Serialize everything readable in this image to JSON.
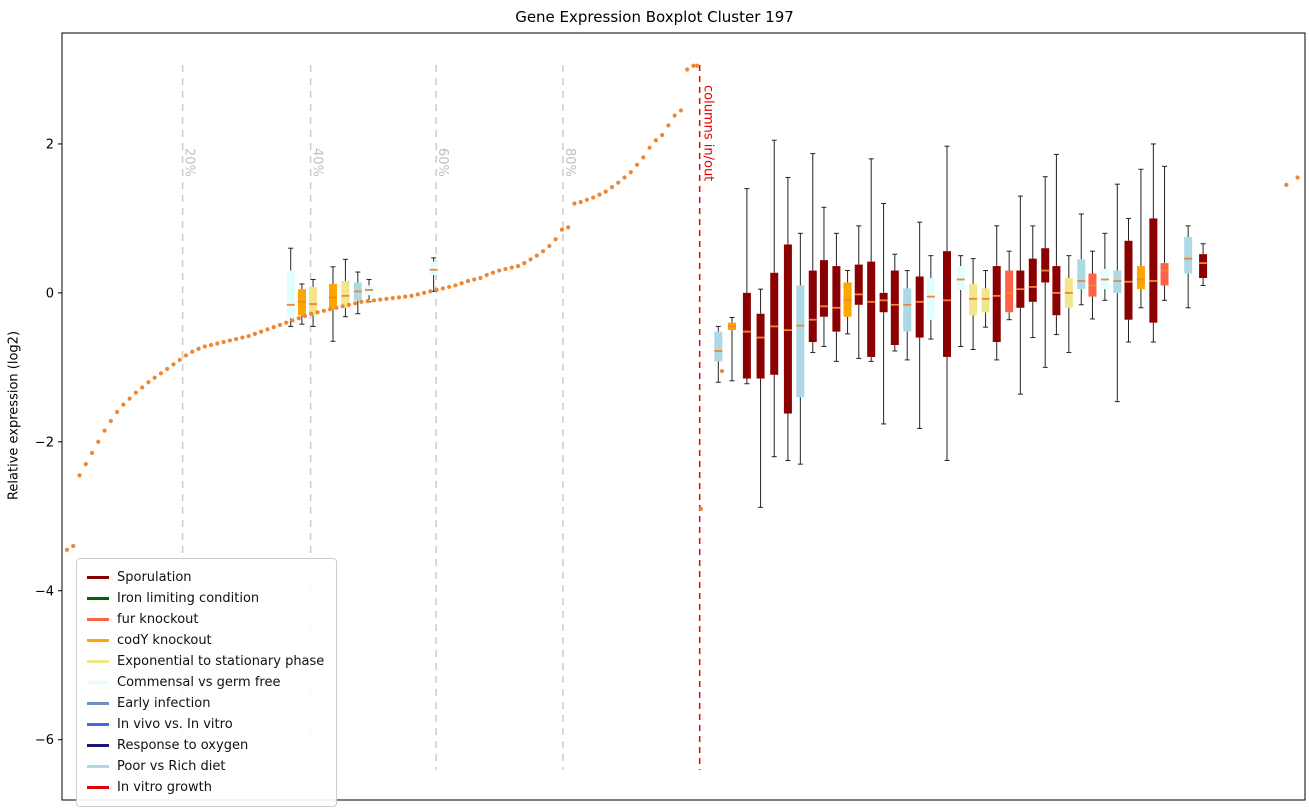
{
  "chart": {
    "title": "Gene Expression Boxplot Cluster 197",
    "ylabel": "Relative expression (log2)"
  },
  "chart_data": {
    "type": "boxplot",
    "title": "Gene Expression Boxplot Cluster 197",
    "xlabel": "",
    "ylabel": "Relative expression (log2)",
    "ylim": [
      -6.81,
      3.49
    ],
    "yticks": [
      {
        "v": 2,
        "label": "2"
      },
      {
        "v": 0,
        "label": "0"
      },
      {
        "v": -2,
        "label": "−2"
      },
      {
        "v": -4,
        "label": "−4"
      },
      {
        "v": -6,
        "label": "−6"
      }
    ],
    "trend": {
      "color": "#ED8733",
      "x_start_frac": 0.004,
      "x_end_frac": 0.508,
      "values": [
        -3.45,
        -3.4,
        -2.45,
        -2.3,
        -2.15,
        -2.0,
        -1.85,
        -1.72,
        -1.6,
        -1.5,
        -1.42,
        -1.34,
        -1.27,
        -1.2,
        -1.14,
        -1.08,
        -1.02,
        -0.96,
        -0.9,
        -0.84,
        -0.79,
        -0.75,
        -0.72,
        -0.7,
        -0.68,
        -0.66,
        -0.64,
        -0.62,
        -0.6,
        -0.58,
        -0.55,
        -0.52,
        -0.49,
        -0.46,
        -0.43,
        -0.4,
        -0.37,
        -0.34,
        -0.31,
        -0.28,
        -0.26,
        -0.24,
        -0.22,
        -0.2,
        -0.18,
        -0.16,
        -0.14,
        -0.12,
        -0.11,
        -0.1,
        -0.09,
        -0.08,
        -0.07,
        -0.06,
        -0.05,
        -0.04,
        -0.02,
        0.0,
        0.02,
        0.04,
        0.06,
        0.08,
        0.1,
        0.13,
        0.16,
        0.18,
        0.2,
        0.24,
        0.27,
        0.3,
        0.32,
        0.34,
        0.36,
        0.4,
        0.45,
        0.5,
        0.56,
        0.63,
        0.72,
        0.85,
        0.88,
        1.2,
        1.22,
        1.25,
        1.28,
        1.32,
        1.36,
        1.42,
        1.48,
        1.55,
        1.62,
        1.72,
        1.82,
        1.95,
        2.05,
        2.12,
        2.25,
        2.38,
        2.45,
        3.0,
        3.05
      ]
    },
    "extra_dots": [
      {
        "f": 0.511,
        "v": 3.05
      },
      {
        "f": 0.514,
        "v": -2.9
      },
      {
        "f": 0.531,
        "v": -1.05
      },
      {
        "f": 0.985,
        "v": 1.45
      },
      {
        "f": 0.994,
        "v": 1.55
      }
    ],
    "percentile_lines": [
      {
        "frac": 0.097,
        "label": "20%"
      },
      {
        "frac": 0.2,
        "label": "40%"
      },
      {
        "frac": 0.301,
        "label": "60%"
      },
      {
        "frac": 0.403,
        "label": "80%"
      }
    ],
    "percentile_line_color": "#cccccc",
    "percentile_label_color": "#c0c0c0",
    "separator": {
      "frac": 0.513,
      "label": "columns in/out",
      "color": "#EE0000"
    },
    "legend": [
      {
        "key": "sporulation",
        "label": "Sporulation",
        "color": "#8B0000"
      },
      {
        "key": "iron",
        "label": "Iron limiting condition",
        "color": "#006400"
      },
      {
        "key": "fur",
        "label": "fur knockout",
        "color": "#FF6347"
      },
      {
        "key": "cody",
        "label": "codY knockout",
        "color": "#FFA500"
      },
      {
        "key": "exp_stat",
        "label": "Exponential to stationary phase",
        "color": "#F0E68C"
      },
      {
        "key": "commensal",
        "label": "Commensal vs germ free",
        "color": "#E0FFFF"
      },
      {
        "key": "early",
        "label": "Early infection",
        "color": "#6F8FBF"
      },
      {
        "key": "invivo",
        "label": "In vivo vs. In vitro",
        "color": "#4169E1"
      },
      {
        "key": "oxygen",
        "label": "Response to oxygen",
        "color": "#191970"
      },
      {
        "key": "poor_rich",
        "label": "Poor vs Rich diet",
        "color": "#ADD8E6"
      },
      {
        "key": "invitro",
        "label": "In vitro growth",
        "color": "#E8000B"
      }
    ],
    "boxplots": [
      {
        "f": 0.184,
        "c": "commensal",
        "lo": -0.45,
        "q1": -0.34,
        "med": -0.16,
        "q3": 0.3,
        "hi": 0.6
      },
      {
        "f": 0.193,
        "c": "cody",
        "lo": -0.42,
        "q1": -0.3,
        "med": -0.12,
        "q3": 0.05,
        "hi": 0.12
      },
      {
        "f": 0.202,
        "c": "exp_stat",
        "lo": -0.45,
        "q1": -0.3,
        "med": -0.15,
        "q3": 0.08,
        "hi": 0.18
      },
      {
        "f": 0.218,
        "c": "cody",
        "lo": -0.65,
        "q1": -0.22,
        "med": -0.06,
        "q3": 0.12,
        "hi": 0.35
      },
      {
        "f": 0.228,
        "c": "exp_stat",
        "lo": -0.32,
        "q1": -0.2,
        "med": -0.04,
        "q3": 0.16,
        "hi": 0.45
      },
      {
        "f": 0.238,
        "c": "poor_rich",
        "lo": -0.28,
        "q1": -0.1,
        "med": 0.02,
        "q3": 0.14,
        "hi": 0.28
      },
      {
        "f": 0.247,
        "c": "commensal",
        "lo": -0.12,
        "q1": -0.03,
        "med": 0.04,
        "q3": 0.1,
        "hi": 0.18
      },
      {
        "f": 0.299,
        "c": "commensal",
        "lo": 0.02,
        "q1": 0.24,
        "med": 0.31,
        "q3": 0.42,
        "hi": 0.47
      },
      {
        "f": 0.528,
        "c": "poor_rich",
        "lo": -1.2,
        "q1": -0.92,
        "med": -0.78,
        "q3": -0.52,
        "hi": -0.45
      },
      {
        "f": 0.539,
        "c": "cody",
        "lo": -1.18,
        "q1": -0.5,
        "med": -0.45,
        "q3": -0.4,
        "hi": -0.33
      },
      {
        "f": 0.551,
        "c": "sporulation",
        "lo": -1.22,
        "q1": -1.15,
        "med": -0.52,
        "q3": 0.0,
        "hi": 1.4
      },
      {
        "f": 0.562,
        "c": "sporulation",
        "lo": -2.88,
        "q1": -1.15,
        "med": -0.6,
        "q3": -0.28,
        "hi": 0.05
      },
      {
        "f": 0.573,
        "c": "sporulation",
        "lo": -2.2,
        "q1": -1.1,
        "med": -0.45,
        "q3": 0.27,
        "hi": 2.05
      },
      {
        "f": 0.584,
        "c": "sporulation",
        "lo": -2.25,
        "q1": -1.62,
        "med": -0.5,
        "q3": 0.65,
        "hi": 1.55
      },
      {
        "f": 0.594,
        "c": "poor_rich",
        "lo": -2.3,
        "q1": -1.4,
        "med": -0.44,
        "q3": 0.1,
        "hi": 0.8
      },
      {
        "f": 0.604,
        "c": "sporulation",
        "lo": -0.8,
        "q1": -0.66,
        "med": -0.36,
        "q3": 0.3,
        "hi": 1.87
      },
      {
        "f": 0.613,
        "c": "sporulation",
        "lo": -0.72,
        "q1": -0.32,
        "med": -0.18,
        "q3": 0.44,
        "hi": 1.15
      },
      {
        "f": 0.623,
        "c": "sporulation",
        "lo": -0.92,
        "q1": -0.52,
        "med": -0.2,
        "q3": 0.36,
        "hi": 0.8
      },
      {
        "f": 0.632,
        "c": "cody",
        "lo": -0.55,
        "q1": -0.32,
        "med": -0.1,
        "q3": 0.14,
        "hi": 0.3
      },
      {
        "f": 0.641,
        "c": "sporulation",
        "lo": -0.88,
        "q1": -0.16,
        "med": -0.02,
        "q3": 0.38,
        "hi": 0.9
      },
      {
        "f": 0.651,
        "c": "sporulation",
        "lo": -0.92,
        "q1": -0.86,
        "med": -0.12,
        "q3": 0.42,
        "hi": 1.8
      },
      {
        "f": 0.661,
        "c": "sporulation",
        "lo": -1.76,
        "q1": -0.26,
        "med": -0.1,
        "q3": 0.0,
        "hi": 1.2
      },
      {
        "f": 0.67,
        "c": "sporulation",
        "lo": -0.78,
        "q1": -0.7,
        "med": -0.16,
        "q3": 0.3,
        "hi": 0.52
      },
      {
        "f": 0.68,
        "c": "poor_rich",
        "lo": -0.9,
        "q1": -0.52,
        "med": -0.16,
        "q3": 0.06,
        "hi": 0.3
      },
      {
        "f": 0.69,
        "c": "sporulation",
        "lo": -1.82,
        "q1": -0.6,
        "med": -0.12,
        "q3": 0.22,
        "hi": 0.95
      },
      {
        "f": 0.699,
        "c": "commensal",
        "lo": -0.62,
        "q1": -0.36,
        "med": -0.05,
        "q3": 0.2,
        "hi": 0.5
      },
      {
        "f": 0.712,
        "c": "sporulation",
        "lo": -2.25,
        "q1": -0.86,
        "med": -0.1,
        "q3": 0.56,
        "hi": 1.97
      },
      {
        "f": 0.723,
        "c": "commensal",
        "lo": -0.72,
        "q1": 0.04,
        "med": 0.18,
        "q3": 0.36,
        "hi": 0.5
      },
      {
        "f": 0.733,
        "c": "exp_stat",
        "lo": -0.76,
        "q1": -0.3,
        "med": -0.08,
        "q3": 0.12,
        "hi": 0.46
      },
      {
        "f": 0.743,
        "c": "exp_stat",
        "lo": -0.46,
        "q1": -0.26,
        "med": -0.08,
        "q3": 0.06,
        "hi": 0.3
      },
      {
        "f": 0.752,
        "c": "sporulation",
        "lo": -0.9,
        "q1": -0.66,
        "med": -0.04,
        "q3": 0.36,
        "hi": 0.9
      },
      {
        "f": 0.762,
        "c": "fur",
        "lo": -0.36,
        "q1": -0.26,
        "med": 0.0,
        "q3": 0.3,
        "hi": 0.56
      },
      {
        "f": 0.771,
        "c": "sporulation",
        "lo": -1.36,
        "q1": -0.2,
        "med": 0.05,
        "q3": 0.3,
        "hi": 1.3
      },
      {
        "f": 0.781,
        "c": "sporulation",
        "lo": -0.6,
        "q1": -0.12,
        "med": 0.08,
        "q3": 0.46,
        "hi": 0.9
      },
      {
        "f": 0.791,
        "c": "sporulation",
        "lo": -1.0,
        "q1": 0.14,
        "med": 0.3,
        "q3": 0.6,
        "hi": 1.56
      },
      {
        "f": 0.8,
        "c": "sporulation",
        "lo": -0.56,
        "q1": -0.3,
        "med": 0.0,
        "q3": 0.36,
        "hi": 1.86
      },
      {
        "f": 0.81,
        "c": "exp_stat",
        "lo": -0.8,
        "q1": -0.2,
        "med": 0.0,
        "q3": 0.2,
        "hi": 0.5
      },
      {
        "f": 0.82,
        "c": "poor_rich",
        "lo": -0.16,
        "q1": 0.05,
        "med": 0.16,
        "q3": 0.45,
        "hi": 1.06
      },
      {
        "f": 0.829,
        "c": "fur",
        "lo": -0.35,
        "q1": -0.05,
        "med": 0.1,
        "q3": 0.26,
        "hi": 0.56
      },
      {
        "f": 0.839,
        "c": "commensal",
        "lo": -0.1,
        "q1": 0.05,
        "med": 0.18,
        "q3": 0.32,
        "hi": 0.8
      },
      {
        "f": 0.849,
        "c": "poor_rich",
        "lo": -1.46,
        "q1": 0.0,
        "med": 0.16,
        "q3": 0.3,
        "hi": 1.46
      },
      {
        "f": 0.858,
        "c": "sporulation",
        "lo": -0.66,
        "q1": -0.36,
        "med": 0.15,
        "q3": 0.7,
        "hi": 1.0
      },
      {
        "f": 0.868,
        "c": "cody",
        "lo": -0.2,
        "q1": 0.05,
        "med": 0.18,
        "q3": 0.36,
        "hi": 1.66
      },
      {
        "f": 0.878,
        "c": "sporulation",
        "lo": -0.66,
        "q1": -0.4,
        "med": 0.16,
        "q3": 1.0,
        "hi": 2.0
      },
      {
        "f": 0.887,
        "c": "fur",
        "lo": -0.1,
        "q1": 0.1,
        "med": 0.3,
        "q3": 0.4,
        "hi": 1.7
      },
      {
        "f": 0.906,
        "c": "poor_rich",
        "lo": -0.2,
        "q1": 0.26,
        "med": 0.46,
        "q3": 0.75,
        "hi": 0.9
      },
      {
        "f": 0.918,
        "c": "sporulation",
        "lo": 0.1,
        "q1": 0.2,
        "med": 0.4,
        "q3": 0.52,
        "hi": 0.66
      }
    ]
  }
}
